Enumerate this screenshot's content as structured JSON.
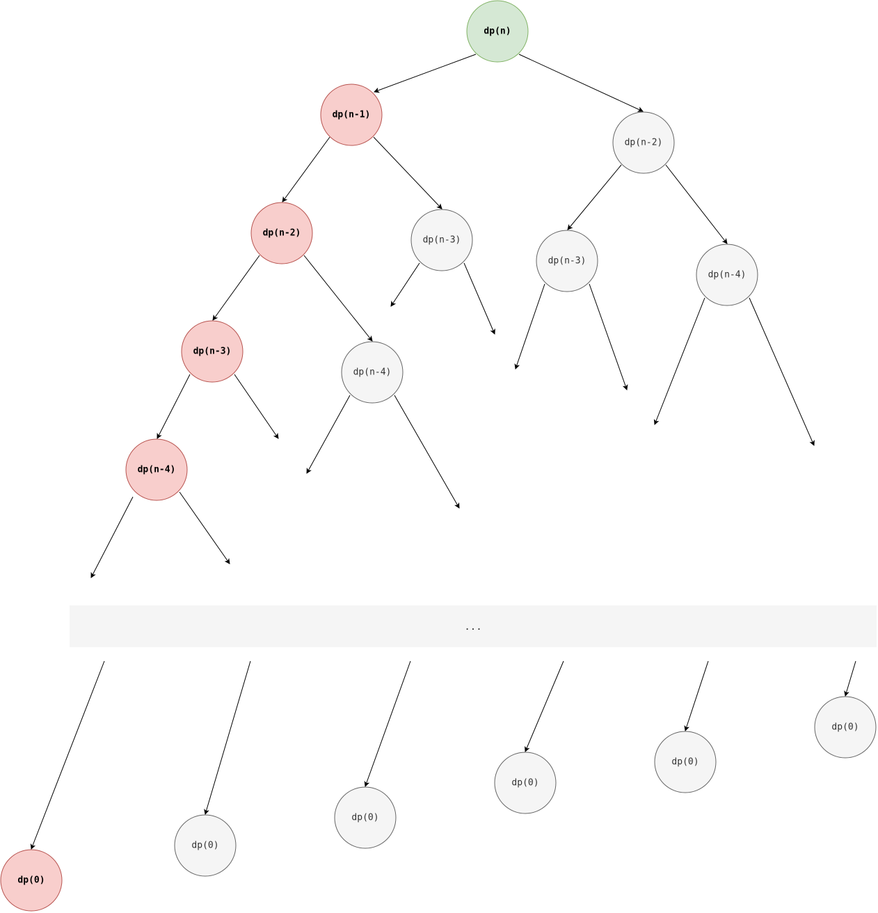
{
  "diagram": {
    "colors": {
      "root_fill": "#d5e8d4",
      "root_stroke": "#82b366",
      "path_fill": "#f8cecc",
      "path_stroke": "#b85450",
      "other_fill": "#f5f5f5",
      "other_stroke": "#666666",
      "band_fill": "#f5f5f5",
      "edge": "#000000"
    },
    "nodes": {
      "root": "dp(n)",
      "l1_left": "dp(n-1)",
      "l1_right": "dp(n-2)",
      "l2_a": "dp(n-2)",
      "l2_b": "dp(n-3)",
      "l2_c": "dp(n-3)",
      "l2_d": "dp(n-4)",
      "l3_a": "dp(n-3)",
      "l3_b": "dp(n-4)",
      "l4_a": "dp(n-4)",
      "leaf_1": "dp(0)",
      "leaf_2": "dp(0)",
      "leaf_3": "dp(0)",
      "leaf_4": "dp(0)",
      "leaf_5": "dp(0)",
      "leaf_6": "dp(0)",
      "leaf_7": "dp(0)"
    },
    "ellipsis": "..."
  }
}
